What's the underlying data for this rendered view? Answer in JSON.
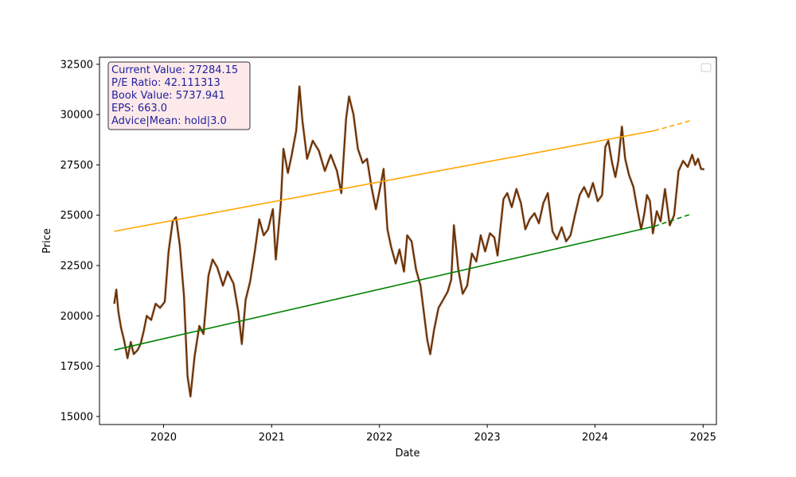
{
  "chart_data": {
    "type": "line",
    "title": "",
    "xlabel": "Date",
    "ylabel": "Price",
    "xlim": [
      "2019-05-29",
      "2025-02-15"
    ],
    "ylim": [
      14600,
      32850
    ],
    "x_ticks": [
      "2020",
      "2021",
      "2022",
      "2023",
      "2024",
      "2025"
    ],
    "y_ticks": [
      15000,
      17500,
      20000,
      22500,
      25000,
      27500,
      30000,
      32500
    ],
    "grid": false,
    "legend": {
      "position": "top-right",
      "entries": []
    },
    "info_box": {
      "lines": [
        "Current Value: 27284.15",
        "P/E Ratio: 42.111313",
        "Book Value: 5737.941",
        "EPS: 663.0",
        "Advice|Mean: hold|3.0"
      ],
      "text_color": "#1a1aa0",
      "background": "#fde9e9",
      "border": "#333333"
    },
    "series": [
      {
        "color": "#6b3200",
        "style": "solid",
        "points": [
          [
            "2019-07-18",
            20600
          ],
          [
            "2019-07-25",
            21300
          ],
          [
            "2019-08-01",
            20200
          ],
          [
            "2019-08-10",
            19400
          ],
          [
            "2019-08-20",
            18800
          ],
          [
            "2019-09-01",
            17900
          ],
          [
            "2019-09-12",
            18700
          ],
          [
            "2019-09-22",
            18100
          ],
          [
            "2019-10-05",
            18300
          ],
          [
            "2019-10-15",
            18600
          ],
          [
            "2019-10-25",
            19200
          ],
          [
            "2019-11-05",
            20000
          ],
          [
            "2019-11-20",
            19800
          ],
          [
            "2019-12-05",
            20600
          ],
          [
            "2019-12-20",
            20400
          ],
          [
            "2020-01-05",
            20700
          ],
          [
            "2020-01-18",
            23200
          ],
          [
            "2020-02-01",
            24700
          ],
          [
            "2020-02-12",
            24900
          ],
          [
            "2020-02-25",
            23500
          ],
          [
            "2020-03-10",
            21000
          ],
          [
            "2020-03-22",
            17000
          ],
          [
            "2020-04-01",
            16000
          ],
          [
            "2020-04-15",
            18000
          ],
          [
            "2020-05-01",
            19500
          ],
          [
            "2020-05-15",
            19100
          ],
          [
            "2020-06-01",
            22000
          ],
          [
            "2020-06-15",
            22800
          ],
          [
            "2020-07-01",
            22400
          ],
          [
            "2020-07-20",
            21500
          ],
          [
            "2020-08-05",
            22200
          ],
          [
            "2020-08-25",
            21600
          ],
          [
            "2020-09-10",
            20200
          ],
          [
            "2020-09-22",
            18600
          ],
          [
            "2020-10-05",
            20800
          ],
          [
            "2020-10-20",
            21700
          ],
          [
            "2020-11-05",
            23200
          ],
          [
            "2020-11-20",
            24800
          ],
          [
            "2020-12-05",
            24000
          ],
          [
            "2020-12-20",
            24300
          ],
          [
            "2021-01-05",
            25300
          ],
          [
            "2021-01-15",
            22800
          ],
          [
            "2021-02-01",
            25600
          ],
          [
            "2021-02-10",
            28300
          ],
          [
            "2021-02-25",
            27100
          ],
          [
            "2021-03-10",
            28000
          ],
          [
            "2021-03-25",
            29200
          ],
          [
            "2021-04-05",
            31400
          ],
          [
            "2021-04-15",
            29700
          ],
          [
            "2021-05-01",
            27800
          ],
          [
            "2021-05-20",
            28700
          ],
          [
            "2021-06-10",
            28200
          ],
          [
            "2021-06-30",
            27200
          ],
          [
            "2021-07-20",
            28000
          ],
          [
            "2021-08-10",
            27200
          ],
          [
            "2021-08-25",
            26100
          ],
          [
            "2021-09-10",
            29800
          ],
          [
            "2021-09-20",
            30900
          ],
          [
            "2021-10-05",
            30000
          ],
          [
            "2021-10-20",
            28300
          ],
          [
            "2021-11-05",
            27600
          ],
          [
            "2021-11-20",
            27800
          ],
          [
            "2021-12-05",
            26400
          ],
          [
            "2021-12-20",
            25300
          ],
          [
            "2022-01-05",
            26500
          ],
          [
            "2022-01-15",
            27300
          ],
          [
            "2022-01-28",
            24300
          ],
          [
            "2022-02-10",
            23400
          ],
          [
            "2022-02-25",
            22600
          ],
          [
            "2022-03-10",
            23300
          ],
          [
            "2022-03-25",
            22200
          ],
          [
            "2022-04-05",
            24000
          ],
          [
            "2022-04-20",
            23700
          ],
          [
            "2022-05-05",
            22300
          ],
          [
            "2022-05-20",
            21500
          ],
          [
            "2022-06-01",
            20100
          ],
          [
            "2022-06-12",
            18800
          ],
          [
            "2022-06-22",
            18100
          ],
          [
            "2022-07-05",
            19300
          ],
          [
            "2022-07-20",
            20400
          ],
          [
            "2022-08-05",
            20800
          ],
          [
            "2022-08-20",
            21200
          ],
          [
            "2022-09-01",
            21800
          ],
          [
            "2022-09-10",
            24500
          ],
          [
            "2022-09-25",
            22300
          ],
          [
            "2022-10-10",
            21100
          ],
          [
            "2022-10-25",
            21500
          ],
          [
            "2022-11-10",
            23100
          ],
          [
            "2022-11-25",
            22700
          ],
          [
            "2022-12-10",
            24000
          ],
          [
            "2022-12-25",
            23200
          ],
          [
            "2023-01-10",
            24100
          ],
          [
            "2023-01-25",
            23900
          ],
          [
            "2023-02-05",
            23000
          ],
          [
            "2023-02-15",
            24400
          ],
          [
            "2023-02-25",
            25800
          ],
          [
            "2023-03-10",
            26100
          ],
          [
            "2023-03-25",
            25400
          ],
          [
            "2023-04-10",
            26300
          ],
          [
            "2023-04-25",
            25600
          ],
          [
            "2023-05-10",
            24300
          ],
          [
            "2023-05-25",
            24800
          ],
          [
            "2023-06-10",
            25100
          ],
          [
            "2023-06-25",
            24600
          ],
          [
            "2023-07-10",
            25600
          ],
          [
            "2023-07-25",
            26100
          ],
          [
            "2023-08-10",
            24200
          ],
          [
            "2023-08-25",
            23800
          ],
          [
            "2023-09-10",
            24400
          ],
          [
            "2023-09-25",
            23700
          ],
          [
            "2023-10-10",
            24000
          ],
          [
            "2023-10-25",
            25000
          ],
          [
            "2023-11-10",
            26000
          ],
          [
            "2023-11-25",
            26400
          ],
          [
            "2023-12-10",
            25900
          ],
          [
            "2023-12-25",
            26600
          ],
          [
            "2024-01-10",
            25700
          ],
          [
            "2024-01-25",
            26000
          ],
          [
            "2024-02-05",
            28400
          ],
          [
            "2024-02-15",
            28700
          ],
          [
            "2024-02-28",
            27600
          ],
          [
            "2024-03-10",
            26900
          ],
          [
            "2024-03-20",
            27700
          ],
          [
            "2024-04-01",
            29400
          ],
          [
            "2024-04-12",
            27800
          ],
          [
            "2024-04-25",
            27000
          ],
          [
            "2024-05-10",
            26400
          ],
          [
            "2024-05-22",
            25400
          ],
          [
            "2024-06-05",
            24300
          ],
          [
            "2024-06-15",
            25000
          ],
          [
            "2024-06-25",
            26000
          ],
          [
            "2024-07-05",
            25700
          ],
          [
            "2024-07-15",
            24100
          ],
          [
            "2024-07-28",
            25200
          ],
          [
            "2024-08-10",
            24700
          ],
          [
            "2024-08-25",
            26300
          ],
          [
            "2024-09-10",
            24500
          ],
          [
            "2024-09-25",
            25000
          ],
          [
            "2024-10-10",
            27200
          ],
          [
            "2024-10-25",
            27700
          ],
          [
            "2024-11-10",
            27400
          ],
          [
            "2024-11-25",
            28000
          ],
          [
            "2024-12-05",
            27500
          ],
          [
            "2024-12-15",
            27800
          ],
          [
            "2024-12-25",
            27300
          ],
          [
            "2025-01-05",
            27284
          ]
        ]
      },
      {
        "color": "#ffa500",
        "style": "solid",
        "points": [
          [
            "2019-07-18",
            24200
          ],
          [
            "2024-07-20",
            29200
          ]
        ]
      },
      {
        "color": "#ffa500",
        "style": "dashed",
        "points": [
          [
            "2024-07-20",
            29200
          ],
          [
            "2024-11-20",
            29700
          ]
        ]
      },
      {
        "color": "#008000",
        "style": "solid",
        "points": [
          [
            "2019-07-18",
            18300
          ],
          [
            "2024-07-20",
            24450
          ]
        ]
      },
      {
        "color": "#008000",
        "style": "dashed",
        "points": [
          [
            "2024-07-20",
            24450
          ],
          [
            "2024-11-20",
            25050
          ]
        ]
      }
    ]
  }
}
